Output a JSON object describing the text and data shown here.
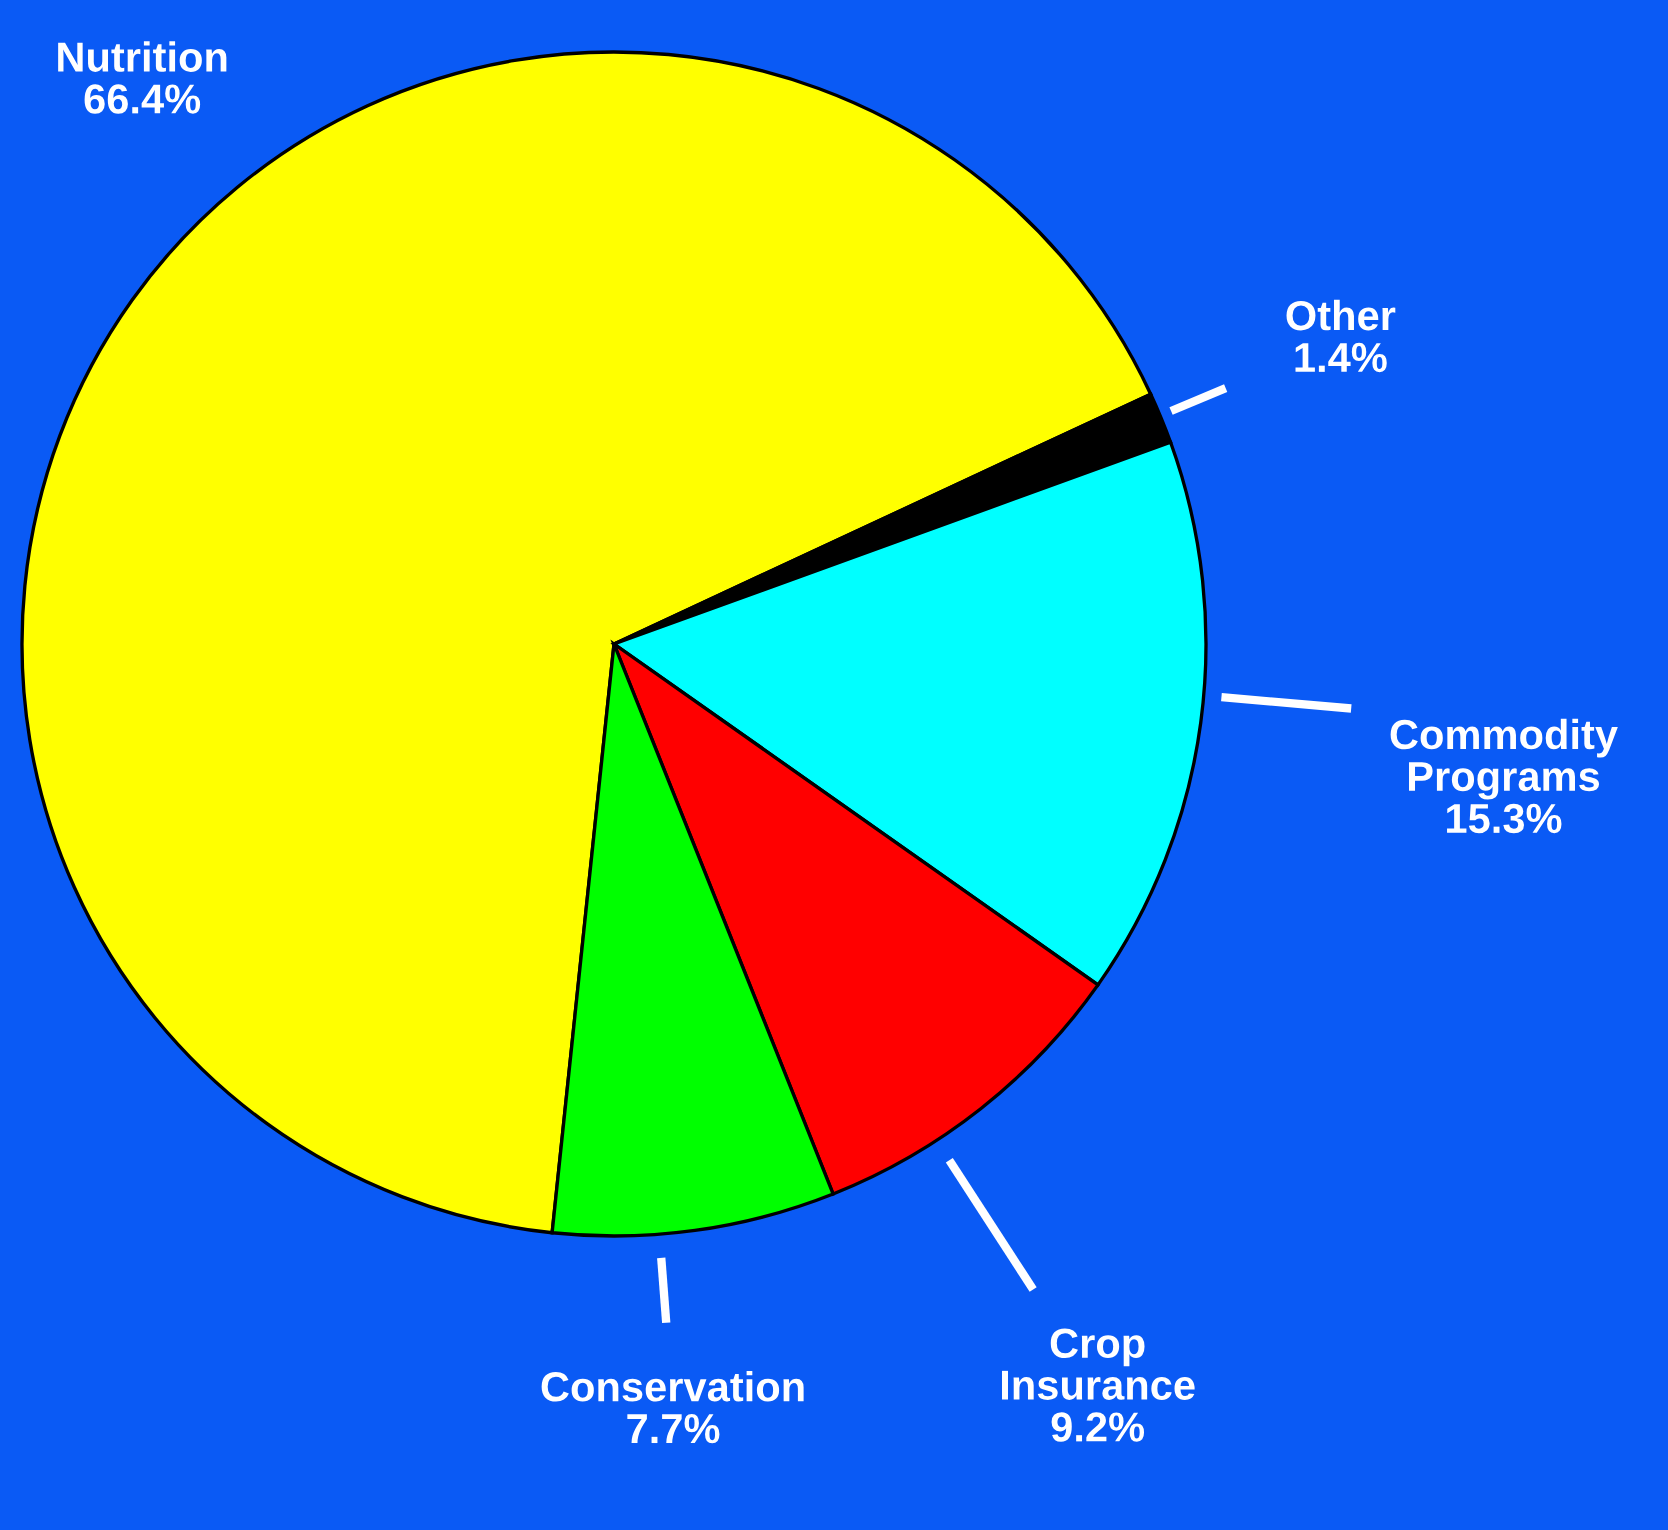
{
  "chart_data": {
    "type": "pie",
    "categories": [
      "Nutrition",
      "Other",
      "Commodity Programs",
      "Crop Insurance",
      "Conservation"
    ],
    "values": [
      66.4,
      1.4,
      15.3,
      9.2,
      7.7
    ],
    "colors": [
      "#ffff00",
      "#000000",
      "#00ffff",
      "#ff0000",
      "#00ff00"
    ],
    "value_labels": [
      "66.4%",
      "1.4%",
      "15.3%",
      "9.2%",
      "7.7%"
    ]
  }
}
